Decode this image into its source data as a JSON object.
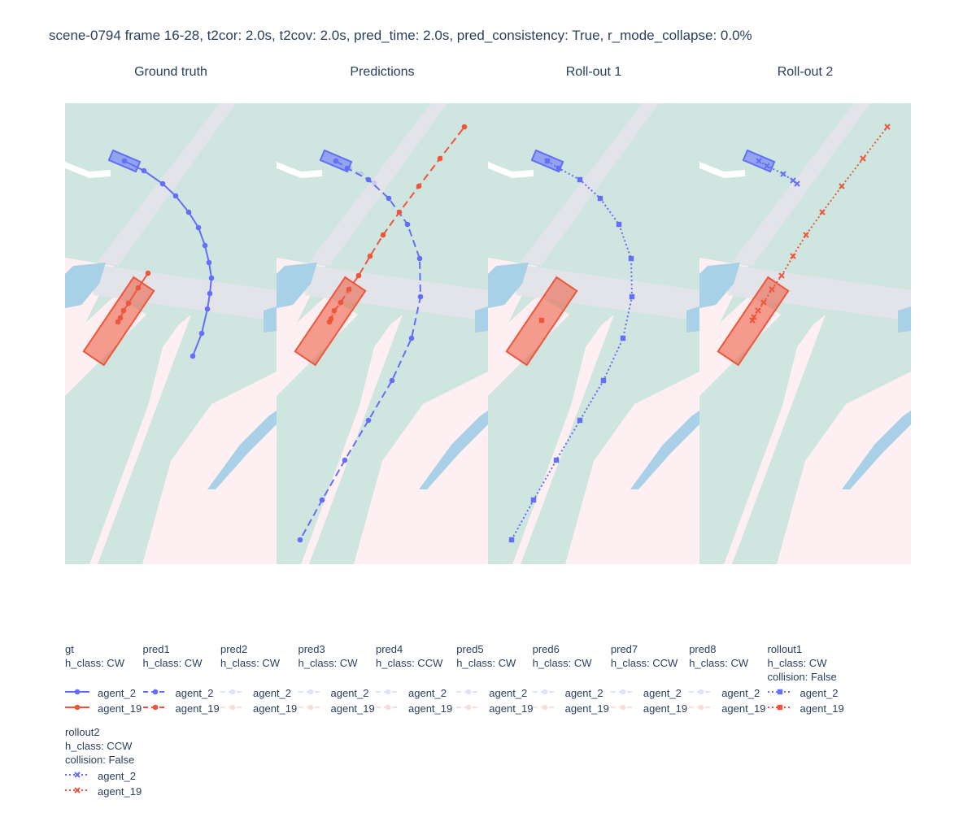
{
  "title": "scene-0794 frame 16-28, t2cor: 2.0s, t2cov: 2.0s, pred_time: 2.0s, pred_consistency: True, r_mode_collapse: 0.0%",
  "colors": {
    "agent_2": "#636efa",
    "agent_19": "#ef553b",
    "drivable": "#cfe5df",
    "walkway": "#fdeff2",
    "crosswalk": "#e3e4ea",
    "water_patch": "#a8d0e6"
  },
  "subplots": [
    {
      "title": "Ground truth"
    },
    {
      "title": "Predictions"
    },
    {
      "title": "Roll-out 1"
    },
    {
      "title": "Roll-out 2"
    }
  ],
  "chart_data": {
    "type": "scatter",
    "agents": [
      {
        "name": "agent_2",
        "color": "#636efa",
        "box_center": [
          73,
          71
        ],
        "box_length": 36,
        "box_width": 13,
        "box_angle_deg": 23
      },
      {
        "name": "agent_19",
        "color": "#ef553b",
        "box_center": [
          66,
          268
        ],
        "box_length": 110,
        "box_width": 30,
        "box_angle_deg": -56
      }
    ],
    "traces": [
      {
        "panel": 0,
        "name": "gt",
        "agent": "agent_2",
        "dash": "solid",
        "marker": "circle",
        "opacity": 1,
        "points": [
          [
            73,
            71
          ],
          [
            97,
            83
          ],
          [
            120,
            99
          ],
          [
            136,
            114
          ],
          [
            152,
            134
          ],
          [
            164,
            153
          ],
          [
            172,
            175
          ],
          [
            177,
            196
          ],
          [
            180,
            215
          ],
          [
            178,
            234
          ],
          [
            175,
            253
          ],
          [
            168,
            283
          ],
          [
            157,
            311
          ]
        ]
      },
      {
        "panel": 0,
        "name": "gt",
        "agent": "agent_19",
        "dash": "solid",
        "marker": "circle",
        "opacity": 1,
        "points": [
          [
            65,
            269
          ],
          [
            68,
            264
          ],
          [
            72,
            255
          ],
          [
            78,
            246
          ],
          [
            90,
            227
          ],
          [
            102,
            209
          ]
        ]
      },
      {
        "panel": 1,
        "name": "pred1",
        "agent": "agent_2",
        "dash": "dash",
        "marker": "circle",
        "opacity": 1,
        "points": [
          [
            73,
            71
          ],
          [
            87,
            80
          ],
          [
            113,
            94
          ],
          [
            138,
            117
          ],
          [
            161,
            149
          ],
          [
            176,
            191
          ],
          [
            177,
            238
          ],
          [
            166,
            289
          ],
          [
            142,
            341
          ],
          [
            113,
            390
          ],
          [
            84,
            439
          ],
          [
            56,
            488
          ],
          [
            29,
            537
          ]
        ]
      },
      {
        "panel": 1,
        "name": "pred1",
        "agent": "agent_19",
        "dash": "dash",
        "marker": "circle",
        "opacity": 1,
        "points": [
          [
            65,
            269
          ],
          [
            67,
            265
          ],
          [
            71,
            255
          ],
          [
            79,
            245
          ],
          [
            89,
            229
          ],
          [
            101,
            212
          ],
          [
            115,
            188
          ],
          [
            131,
            162
          ],
          [
            151,
            134
          ],
          [
            175,
            102
          ],
          [
            201,
            68
          ],
          [
            231,
            29
          ]
        ]
      },
      {
        "panel": 1,
        "name": "pred2",
        "agent": "agent_2",
        "dash": "dash",
        "marker": "circle",
        "opacity": 0.2,
        "points": [
          [
            73,
            71
          ],
          [
            90,
            80
          ],
          [
            104,
            87
          ],
          [
            120,
            98
          ]
        ]
      },
      {
        "panel": 1,
        "name": "pred2",
        "agent": "agent_19",
        "dash": "dash",
        "marker": "circle",
        "opacity": 0.2,
        "points": [
          [
            66,
            268
          ],
          [
            70,
            258
          ],
          [
            78,
            246
          ],
          [
            88,
            232
          ]
        ]
      },
      {
        "panel": 2,
        "name": "rollout1",
        "agent": "agent_2",
        "dash": "dot",
        "marker": "square",
        "opacity": 1,
        "points": [
          [
            73,
            71
          ],
          [
            87,
            80
          ],
          [
            113,
            94
          ],
          [
            138,
            117
          ],
          [
            161,
            149
          ],
          [
            176,
            191
          ],
          [
            177,
            238
          ],
          [
            166,
            289
          ],
          [
            142,
            341
          ],
          [
            113,
            390
          ],
          [
            84,
            439
          ],
          [
            56,
            488
          ],
          [
            29,
            537
          ]
        ]
      },
      {
        "panel": 2,
        "name": "rollout1",
        "agent": "agent_19",
        "dash": "dot",
        "marker": "square",
        "opacity": 1,
        "points": [
          [
            66,
            267
          ]
        ]
      },
      {
        "panel": 3,
        "name": "rollout2",
        "agent": "agent_2",
        "dash": "dot",
        "marker": "x",
        "opacity": 1,
        "points": [
          [
            73,
            71
          ],
          [
            83,
            77
          ],
          [
            103,
            87
          ],
          [
            115,
            95
          ],
          [
            120,
            99
          ]
        ]
      },
      {
        "panel": 3,
        "name": "rollout2",
        "agent": "agent_19",
        "dash": "dot",
        "marker": "x",
        "opacity": 1,
        "points": [
          [
            65,
            267
          ],
          [
            67,
            263
          ],
          [
            72,
            255
          ],
          [
            79,
            245
          ],
          [
            89,
            229
          ],
          [
            101,
            212
          ],
          [
            115,
            188
          ],
          [
            131,
            162
          ],
          [
            151,
            134
          ],
          [
            175,
            102
          ],
          [
            201,
            68
          ],
          [
            231,
            29
          ]
        ]
      }
    ]
  },
  "legend": [
    {
      "title_lines": [
        "gt",
        "h_class: CW"
      ],
      "dash": "solid",
      "marker": "circle",
      "opacity": 1,
      "items": [
        "agent_2",
        "agent_19"
      ]
    },
    {
      "title_lines": [
        "pred1",
        "h_class: CW"
      ],
      "dash": "dash",
      "marker": "circle",
      "opacity": 1,
      "items": [
        "agent_2",
        "agent_19"
      ]
    },
    {
      "title_lines": [
        "pred2",
        "h_class: CW"
      ],
      "dash": "dash",
      "marker": "circle",
      "opacity": 0.2,
      "items": [
        "agent_2",
        "agent_19"
      ]
    },
    {
      "title_lines": [
        "pred3",
        "h_class: CW"
      ],
      "dash": "dash",
      "marker": "circle",
      "opacity": 0.2,
      "items": [
        "agent_2",
        "agent_19"
      ]
    },
    {
      "title_lines": [
        "pred4",
        "h_class: CCW"
      ],
      "dash": "dash",
      "marker": "circle",
      "opacity": 0.2,
      "items": [
        "agent_2",
        "agent_19"
      ]
    },
    {
      "title_lines": [
        "pred5",
        "h_class: CW"
      ],
      "dash": "dash",
      "marker": "circle",
      "opacity": 0.2,
      "items": [
        "agent_2",
        "agent_19"
      ]
    },
    {
      "title_lines": [
        "pred6",
        "h_class: CW"
      ],
      "dash": "dash",
      "marker": "circle",
      "opacity": 0.2,
      "items": [
        "agent_2",
        "agent_19"
      ]
    },
    {
      "title_lines": [
        "pred7",
        "h_class: CCW"
      ],
      "dash": "dash",
      "marker": "circle",
      "opacity": 0.2,
      "items": [
        "agent_2",
        "agent_19"
      ]
    },
    {
      "title_lines": [
        "pred8",
        "h_class: CW"
      ],
      "dash": "dash",
      "marker": "circle",
      "opacity": 0.2,
      "items": [
        "agent_2",
        "agent_19"
      ]
    },
    {
      "title_lines": [
        "rollout1",
        "h_class: CW",
        "collision: False"
      ],
      "dash": "dot",
      "marker": "square",
      "opacity": 1,
      "items": [
        "agent_2",
        "agent_19"
      ]
    },
    {
      "title_lines": [
        "rollout2",
        "h_class: CCW",
        "collision: False"
      ],
      "dash": "dot",
      "marker": "x",
      "opacity": 1,
      "items": [
        "agent_2",
        "agent_19"
      ]
    }
  ]
}
